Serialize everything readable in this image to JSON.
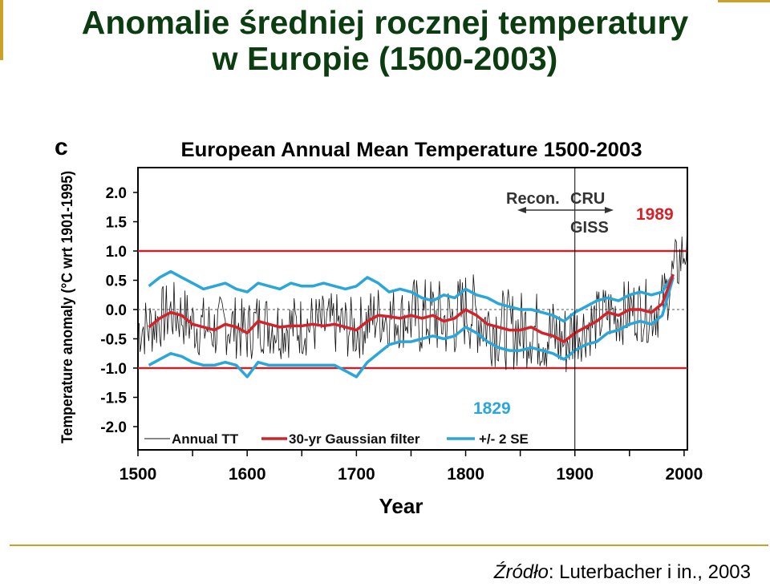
{
  "slide": {
    "title_line1": "Anomalie średniej rocznej temperatury",
    "title_line2": "w Europie (1500-2003)",
    "source_label": "Źródło",
    "source_text": ": Luterbacher i in., 2003"
  },
  "chart_data": {
    "type": "line",
    "panel_label": "c",
    "title": "European Annual Mean Temperature 1500-2003",
    "xlabel": "Year",
    "ylabel": "Temperature anomaly (°C wrt 1901-1995)",
    "xlim": [
      1500,
      2003
    ],
    "ylim": [
      -2.0,
      2.0
    ],
    "x_ticks": [
      1500,
      1600,
      1700,
      1800,
      1900,
      2000
    ],
    "y_ticks": [
      "2.0",
      "1.5",
      "1.0",
      "0.5",
      "0.0",
      "-0.5",
      "-1.0",
      "-1.5",
      "-2.0"
    ],
    "reference_lines": [
      1.0,
      -1.0
    ],
    "zero_line": 0.0,
    "divider_year": 1900,
    "annotations": {
      "recon": "Recon.",
      "cru": "CRU",
      "giss": "GISS",
      "warm_year": "1989",
      "cold_year": "1829"
    },
    "legend": {
      "annual": "Annual TT",
      "filter": "30-yr Gaussian filter",
      "se": "+/- 2 SE"
    },
    "colors": {
      "annual": "#111111",
      "filter": "#d2232a",
      "se": "#2aa6d8",
      "reference": "#c0272d",
      "title_text": "#0b3d10",
      "accent_gold": "#c9a227"
    },
    "series": [
      {
        "name": "30-yr Gaussian filter",
        "x": [
          1510,
          1520,
          1530,
          1540,
          1550,
          1560,
          1570,
          1580,
          1590,
          1600,
          1610,
          1620,
          1630,
          1640,
          1650,
          1660,
          1670,
          1680,
          1690,
          1700,
          1710,
          1720,
          1730,
          1740,
          1750,
          1760,
          1770,
          1780,
          1790,
          1800,
          1810,
          1820,
          1830,
          1840,
          1850,
          1860,
          1870,
          1880,
          1890,
          1900,
          1910,
          1920,
          1930,
          1940,
          1950,
          1960,
          1970,
          1980,
          1990
        ],
        "y": [
          -0.3,
          -0.15,
          -0.05,
          -0.1,
          -0.25,
          -0.3,
          -0.35,
          -0.25,
          -0.3,
          -0.4,
          -0.2,
          -0.25,
          -0.3,
          -0.28,
          -0.28,
          -0.25,
          -0.28,
          -0.25,
          -0.3,
          -0.35,
          -0.2,
          -0.1,
          -0.12,
          -0.15,
          -0.1,
          -0.15,
          -0.1,
          -0.2,
          -0.15,
          0.0,
          -0.1,
          -0.25,
          -0.3,
          -0.35,
          -0.35,
          -0.3,
          -0.4,
          -0.45,
          -0.55,
          -0.4,
          -0.3,
          -0.2,
          -0.05,
          -0.1,
          0.0,
          0.0,
          -0.05,
          0.1,
          0.6
        ]
      },
      {
        "name": "+/- 2 SE upper",
        "x": [
          1510,
          1520,
          1530,
          1540,
          1550,
          1560,
          1570,
          1580,
          1590,
          1600,
          1610,
          1620,
          1630,
          1640,
          1650,
          1660,
          1670,
          1680,
          1690,
          1700,
          1710,
          1720,
          1730,
          1740,
          1750,
          1760,
          1770,
          1780,
          1790,
          1800,
          1810,
          1820,
          1830,
          1840,
          1850,
          1860,
          1870,
          1880,
          1890,
          1900,
          1910,
          1920,
          1930,
          1940,
          1950,
          1960,
          1970,
          1980,
          1990
        ],
        "y": [
          0.4,
          0.55,
          0.65,
          0.55,
          0.45,
          0.35,
          0.4,
          0.45,
          0.35,
          0.3,
          0.45,
          0.4,
          0.35,
          0.45,
          0.4,
          0.4,
          0.45,
          0.4,
          0.35,
          0.4,
          0.55,
          0.45,
          0.3,
          0.35,
          0.3,
          0.2,
          0.15,
          0.25,
          0.2,
          0.35,
          0.25,
          0.2,
          0.1,
          0.05,
          0.0,
          0.0,
          -0.05,
          -0.1,
          -0.2,
          -0.05,
          0.05,
          0.15,
          0.2,
          0.15,
          0.25,
          0.3,
          0.25,
          0.3,
          0.6
        ]
      },
      {
        "name": "+/- 2 SE lower",
        "x": [
          1510,
          1520,
          1530,
          1540,
          1550,
          1560,
          1570,
          1580,
          1590,
          1600,
          1610,
          1620,
          1630,
          1640,
          1650,
          1660,
          1670,
          1680,
          1690,
          1700,
          1710,
          1720,
          1730,
          1740,
          1750,
          1760,
          1770,
          1780,
          1790,
          1800,
          1810,
          1820,
          1830,
          1840,
          1850,
          1860,
          1870,
          1880,
          1890,
          1900,
          1910,
          1920,
          1930,
          1940,
          1950,
          1960,
          1970,
          1980,
          1990
        ],
        "y": [
          -0.95,
          -0.85,
          -0.75,
          -0.8,
          -0.9,
          -0.95,
          -0.95,
          -0.9,
          -0.95,
          -1.15,
          -0.9,
          -0.95,
          -0.95,
          -0.95,
          -0.95,
          -0.95,
          -0.95,
          -0.95,
          -1.05,
          -1.15,
          -0.9,
          -0.75,
          -0.6,
          -0.55,
          -0.55,
          -0.5,
          -0.45,
          -0.5,
          -0.45,
          -0.3,
          -0.4,
          -0.55,
          -0.65,
          -0.7,
          -0.7,
          -0.65,
          -0.7,
          -0.75,
          -0.85,
          -0.7,
          -0.6,
          -0.55,
          -0.4,
          -0.35,
          -0.25,
          -0.2,
          -0.25,
          -0.1,
          0.55
        ]
      }
    ]
  }
}
